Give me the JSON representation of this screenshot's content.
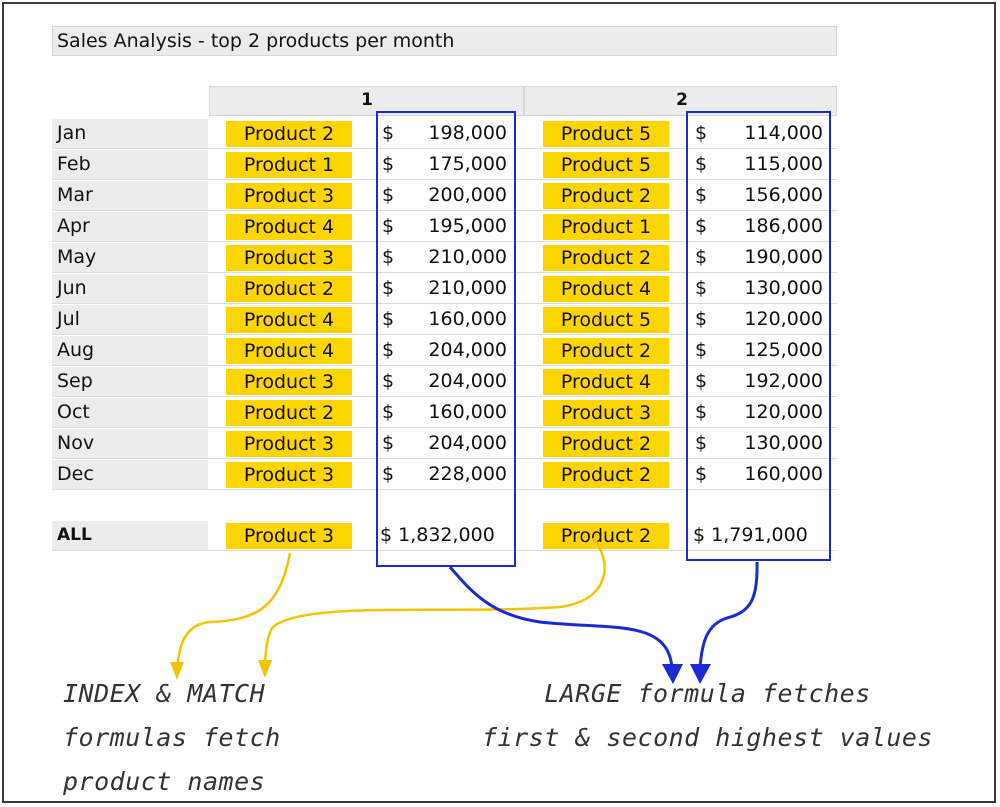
{
  "title": "Sales Analysis - top 2 products per month",
  "column_headers": [
    "1",
    "2"
  ],
  "rows": [
    {
      "month": "Jan",
      "p1": "Product 2",
      "v1": "198,000",
      "p2": "Product 5",
      "v2": "114,000"
    },
    {
      "month": "Feb",
      "p1": "Product 1",
      "v1": "175,000",
      "p2": "Product 5",
      "v2": "115,000"
    },
    {
      "month": "Mar",
      "p1": "Product 3",
      "v1": "200,000",
      "p2": "Product 2",
      "v2": "156,000"
    },
    {
      "month": "Apr",
      "p1": "Product 4",
      "v1": "195,000",
      "p2": "Product 1",
      "v2": "186,000"
    },
    {
      "month": "May",
      "p1": "Product 3",
      "v1": "210,000",
      "p2": "Product 2",
      "v2": "190,000"
    },
    {
      "month": "Jun",
      "p1": "Product 2",
      "v1": "210,000",
      "p2": "Product 4",
      "v2": "130,000"
    },
    {
      "month": "Jul",
      "p1": "Product 4",
      "v1": "160,000",
      "p2": "Product 5",
      "v2": "120,000"
    },
    {
      "month": "Aug",
      "p1": "Product 4",
      "v1": "204,000",
      "p2": "Product 2",
      "v2": "125,000"
    },
    {
      "month": "Sep",
      "p1": "Product 3",
      "v1": "204,000",
      "p2": "Product 4",
      "v2": "192,000"
    },
    {
      "month": "Oct",
      "p1": "Product 2",
      "v1": "160,000",
      "p2": "Product 3",
      "v2": "120,000"
    },
    {
      "month": "Nov",
      "p1": "Product 3",
      "v1": "204,000",
      "p2": "Product 2",
      "v2": "130,000"
    },
    {
      "month": "Dec",
      "p1": "Product 3",
      "v1": "228,000",
      "p2": "Product 2",
      "v2": "160,000"
    }
  ],
  "currency_symbol": "$",
  "total": {
    "label": "ALL",
    "p1": "Product 3",
    "v1": "$ 1,832,000",
    "p2": "Product 2",
    "v2": "$ 1,791,000"
  },
  "notes": {
    "left": [
      "INDEX & MATCH",
      "formulas fetch",
      "product names"
    ],
    "right": [
      "LARGE formula fetches",
      "first & second highest values"
    ]
  },
  "colors": {
    "highlight": "#ffd500",
    "box": "#1a2bd6",
    "arrow_yellow": "#f5c400",
    "arrow_blue": "#1a2bd6"
  }
}
